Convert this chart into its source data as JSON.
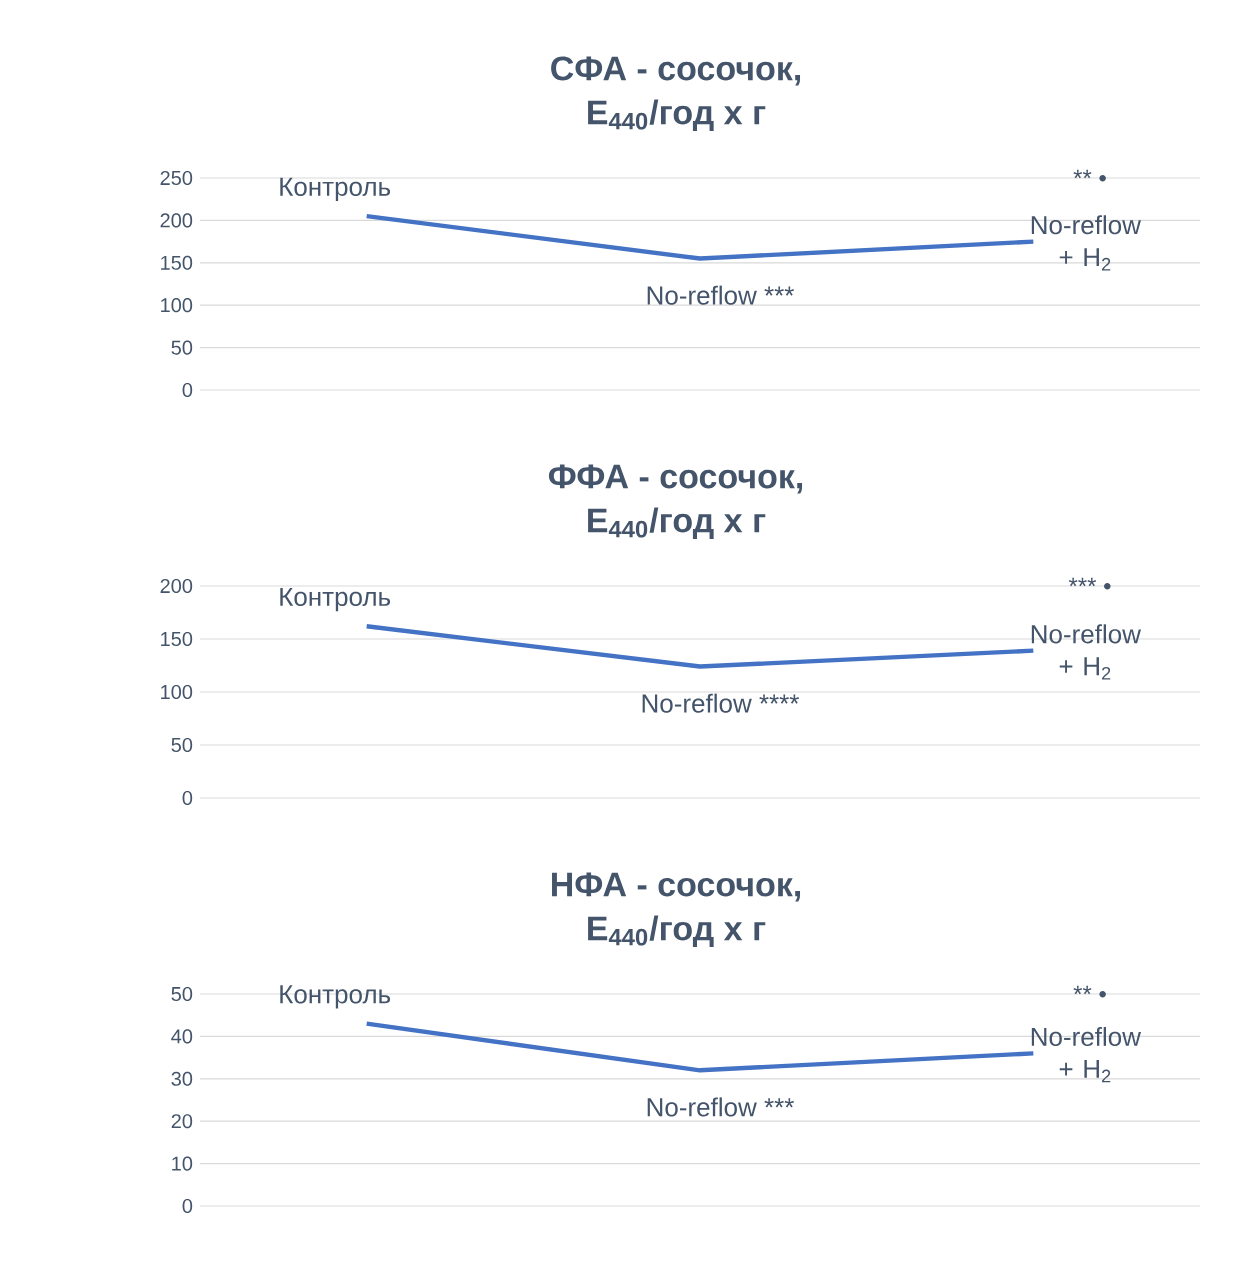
{
  "chart_data": [
    {
      "type": "line",
      "title": "СФА - сосочок,",
      "subtitle": "E$_{440}$/год x г",
      "categories": [
        "Контроль",
        "No-reflow ***",
        "No-reflow + H$_{2}$"
      ],
      "values": [
        205,
        155,
        175
      ],
      "color": "#4472c4",
      "ylim": [
        0,
        250
      ],
      "yticks": [
        0,
        50,
        100,
        150,
        200,
        250
      ],
      "grid": "y",
      "tick_labels": "y",
      "annotations": [
        "** •"
      ]
    },
    {
      "type": "line",
      "title": "ФФА - сосочок,",
      "subtitle": "E$_{440}$/год x г",
      "categories": [
        "Контроль",
        "No-reflow ****",
        "No-reflow + H$_{2}$"
      ],
      "values": [
        162,
        124,
        139
      ],
      "color": "#4472c4",
      "ylim": [
        0,
        200
      ],
      "yticks": [
        0,
        50,
        100,
        150,
        200
      ],
      "grid": "y",
      "tick_labels": "y",
      "annotations": [
        "*** •"
      ]
    },
    {
      "type": "line",
      "title": "НФА - сосочок,",
      "subtitle": "E$_{440}$/год x г",
      "categories": [
        "Контроль",
        "No-reflow ***",
        "No-reflow + H$_{2}$"
      ],
      "values": [
        43,
        32,
        36
      ],
      "color": "#4472c4",
      "ylim": [
        0,
        50
      ],
      "yticks": [
        0,
        10,
        20,
        30,
        40,
        50
      ],
      "grid": "y",
      "tick_labels": "y",
      "annotations": [
        "** •"
      ]
    }
  ]
}
